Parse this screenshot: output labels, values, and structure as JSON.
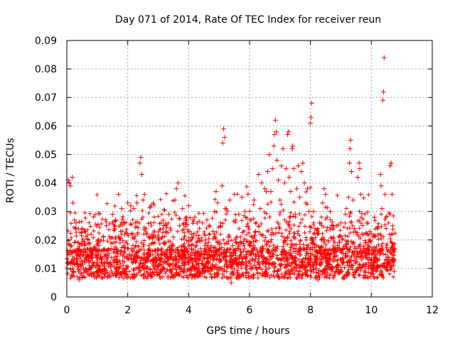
{
  "chart_data": {
    "type": "scatter",
    "title": "Day 071 of 2014, Rate Of TEC Index for receiver reun",
    "xlabel": "GPS time / hours",
    "ylabel": "ROTI / TECUs",
    "xlim": [
      0,
      12
    ],
    "ylim": [
      0,
      0.09
    ],
    "x_ticks": [
      0,
      2,
      4,
      6,
      8,
      10,
      12
    ],
    "x_tick_labels": [
      "0",
      "2",
      "4",
      "6",
      "8",
      "10",
      "12"
    ],
    "y_ticks": [
      0,
      0.01,
      0.02,
      0.03,
      0.04,
      0.05,
      0.06,
      0.07,
      0.08,
      0.09
    ],
    "y_tick_labels": [
      "0",
      "0.01",
      "0.02",
      "0.03",
      "0.04",
      "0.05",
      "0.06",
      "0.07",
      "0.08",
      "0.09"
    ],
    "grid": true,
    "marker": "+",
    "color": "#ff0000",
    "series": [
      {
        "name": "ROTI",
        "points": [
          [
            0.02,
            0.012
          ],
          [
            0.05,
            0.041
          ],
          [
            0.08,
            0.04
          ],
          [
            0.12,
            0.039
          ],
          [
            0.15,
            0.018
          ],
          [
            0.18,
            0.042
          ],
          [
            0.2,
            0.033
          ],
          [
            0.22,
            0.009
          ],
          [
            0.25,
            0.027
          ],
          [
            0.3,
            0.026
          ],
          [
            0.35,
            0.015
          ],
          [
            0.4,
            0.006
          ],
          [
            0.45,
            0.011
          ],
          [
            0.5,
            0.024
          ],
          [
            0.55,
            0.01
          ],
          [
            0.6,
            0.023
          ],
          [
            0.65,
            0.014
          ],
          [
            0.7,
            0.008
          ],
          [
            0.75,
            0.019
          ],
          [
            0.8,
            0.022
          ],
          [
            0.85,
            0.012
          ],
          [
            0.9,
            0.007
          ],
          [
            0.95,
            0.016
          ],
          [
            1.0,
            0.011
          ],
          [
            1.05,
            0.018
          ],
          [
            1.1,
            0.009
          ],
          [
            1.15,
            0.013
          ],
          [
            1.2,
            0.021
          ],
          [
            1.25,
            0.01
          ],
          [
            1.3,
            0.025
          ],
          [
            1.35,
            0.014
          ],
          [
            1.4,
            0.008
          ],
          [
            1.45,
            0.017
          ],
          [
            1.5,
            0.029
          ],
          [
            1.55,
            0.012
          ],
          [
            1.6,
            0.027
          ],
          [
            1.65,
            0.01
          ],
          [
            1.7,
            0.036
          ],
          [
            1.75,
            0.019
          ],
          [
            1.8,
            0.031
          ],
          [
            1.85,
            0.011
          ],
          [
            1.9,
            0.022
          ],
          [
            1.95,
            0.009
          ],
          [
            2.0,
            0.033
          ],
          [
            2.05,
            0.015
          ],
          [
            2.1,
            0.032
          ],
          [
            2.15,
            0.012
          ],
          [
            2.2,
            0.031
          ],
          [
            2.25,
            0.026
          ],
          [
            2.3,
            0.033
          ],
          [
            2.35,
            0.01
          ],
          [
            2.4,
            0.047
          ],
          [
            2.43,
            0.049
          ],
          [
            2.46,
            0.043
          ],
          [
            2.5,
            0.034
          ],
          [
            2.55,
            0.036
          ],
          [
            2.6,
            0.024
          ],
          [
            2.65,
            0.013
          ],
          [
            2.7,
            0.018
          ],
          [
            2.75,
            0.008
          ],
          [
            2.8,
            0.022
          ],
          [
            2.85,
            0.011
          ],
          [
            2.9,
            0.016
          ],
          [
            2.95,
            0.009
          ],
          [
            3.0,
            0.02
          ],
          [
            3.05,
            0.013
          ],
          [
            3.1,
            0.026
          ],
          [
            3.15,
            0.01
          ],
          [
            3.2,
            0.019
          ],
          [
            3.25,
            0.023
          ],
          [
            3.3,
            0.012
          ],
          [
            3.35,
            0.029
          ],
          [
            3.4,
            0.015
          ],
          [
            3.45,
            0.008
          ],
          [
            3.5,
            0.021
          ],
          [
            3.55,
            0.034
          ],
          [
            3.6,
            0.038
          ],
          [
            3.65,
            0.04
          ],
          [
            3.7,
            0.025
          ],
          [
            3.75,
            0.014
          ],
          [
            3.8,
            0.031
          ],
          [
            3.85,
            0.011
          ],
          [
            3.9,
            0.027
          ],
          [
            3.95,
            0.016
          ],
          [
            4.0,
            0.032
          ],
          [
            4.05,
            0.01
          ],
          [
            4.1,
            0.022
          ],
          [
            4.15,
            0.013
          ],
          [
            4.2,
            0.028
          ],
          [
            4.25,
            0.018
          ],
          [
            4.3,
            0.009
          ],
          [
            4.35,
            0.024
          ],
          [
            4.4,
            0.014
          ],
          [
            4.45,
            0.026
          ],
          [
            4.5,
            0.011
          ],
          [
            4.55,
            0.02
          ],
          [
            4.6,
            0.027
          ],
          [
            4.65,
            0.012
          ],
          [
            4.7,
            0.017
          ],
          [
            4.75,
            0.007
          ],
          [
            4.8,
            0.023
          ],
          [
            4.85,
            0.03
          ],
          [
            4.9,
            0.037
          ],
          [
            4.95,
            0.033
          ],
          [
            5.0,
            0.015
          ],
          [
            5.05,
            0.026
          ],
          [
            5.1,
            0.039
          ],
          [
            5.12,
            0.054
          ],
          [
            5.15,
            0.059
          ],
          [
            5.18,
            0.056
          ],
          [
            5.2,
            0.031
          ],
          [
            5.25,
            0.012
          ],
          [
            5.3,
            0.021
          ],
          [
            5.35,
            0.034
          ],
          [
            5.4,
            0.005
          ],
          [
            5.45,
            0.018
          ],
          [
            5.5,
            0.036
          ],
          [
            5.55,
            0.027
          ],
          [
            5.6,
            0.013
          ],
          [
            5.65,
            0.029
          ],
          [
            5.7,
            0.021
          ],
          [
            5.75,
            0.035
          ],
          [
            5.8,
            0.014
          ],
          [
            5.85,
            0.03
          ],
          [
            5.9,
            0.011
          ],
          [
            5.95,
            0.036
          ],
          [
            6.0,
            0.019
          ],
          [
            6.05,
            0.027
          ],
          [
            6.1,
            0.013
          ],
          [
            6.15,
            0.034
          ],
          [
            6.2,
            0.023
          ],
          [
            6.25,
            0.01
          ],
          [
            6.3,
            0.043
          ],
          [
            6.35,
            0.031
          ],
          [
            6.4,
            0.04
          ],
          [
            6.45,
            0.017
          ],
          [
            6.5,
            0.038
          ],
          [
            6.55,
            0.037
          ],
          [
            6.6,
            0.044
          ],
          [
            6.65,
            0.05
          ],
          [
            6.7,
            0.037
          ],
          [
            6.75,
            0.045
          ],
          [
            6.8,
            0.053
          ],
          [
            6.82,
            0.057
          ],
          [
            6.85,
            0.062
          ],
          [
            6.88,
            0.058
          ],
          [
            6.9,
            0.048
          ],
          [
            6.95,
            0.041
          ],
          [
            7.0,
            0.034
          ],
          [
            7.05,
            0.046
          ],
          [
            7.1,
            0.052
          ],
          [
            7.15,
            0.04
          ],
          [
            7.2,
            0.045
          ],
          [
            7.25,
            0.057
          ],
          [
            7.28,
            0.058
          ],
          [
            7.3,
            0.042
          ],
          [
            7.35,
            0.037
          ],
          [
            7.4,
            0.052
          ],
          [
            7.42,
            0.053
          ],
          [
            7.45,
            0.045
          ],
          [
            7.5,
            0.029
          ],
          [
            7.55,
            0.038
          ],
          [
            7.6,
            0.046
          ],
          [
            7.65,
            0.035
          ],
          [
            7.7,
            0.044
          ],
          [
            7.75,
            0.047
          ],
          [
            7.8,
            0.04
          ],
          [
            7.85,
            0.033
          ],
          [
            7.9,
            0.038
          ],
          [
            7.95,
            0.03
          ],
          [
            8.0,
            0.061
          ],
          [
            8.02,
            0.063
          ],
          [
            8.04,
            0.068
          ],
          [
            8.1,
            0.03
          ],
          [
            8.15,
            0.024
          ],
          [
            8.2,
            0.018
          ],
          [
            8.25,
            0.006
          ],
          [
            8.3,
            0.026
          ],
          [
            8.35,
            0.012
          ],
          [
            8.4,
            0.033
          ],
          [
            8.45,
            0.038
          ],
          [
            8.5,
            0.036
          ],
          [
            8.55,
            0.028
          ],
          [
            8.6,
            0.015
          ],
          [
            8.65,
            0.03
          ],
          [
            8.7,
            0.01
          ],
          [
            8.75,
            0.021
          ],
          [
            8.8,
            0.013
          ],
          [
            8.85,
            0.025
          ],
          [
            8.9,
            0.009
          ],
          [
            8.95,
            0.019
          ],
          [
            9.0,
            0.026
          ],
          [
            9.05,
            0.012
          ],
          [
            9.1,
            0.017
          ],
          [
            9.15,
            0.029
          ],
          [
            9.2,
            0.008
          ],
          [
            9.25,
            0.035
          ],
          [
            9.28,
            0.047
          ],
          [
            9.3,
            0.052
          ],
          [
            9.32,
            0.055
          ],
          [
            9.35,
            0.044
          ],
          [
            9.4,
            0.034
          ],
          [
            9.45,
            0.024
          ],
          [
            9.5,
            0.014
          ],
          [
            9.55,
            0.042
          ],
          [
            9.6,
            0.047
          ],
          [
            9.62,
            0.045
          ],
          [
            9.65,
            0.036
          ],
          [
            9.7,
            0.022
          ],
          [
            9.75,
            0.011
          ],
          [
            9.8,
            0.019
          ],
          [
            9.85,
            0.026
          ],
          [
            9.9,
            0.01
          ],
          [
            9.95,
            0.023
          ],
          [
            10.0,
            0.015
          ],
          [
            10.05,
            0.021
          ],
          [
            10.1,
            0.028
          ],
          [
            10.15,
            0.009
          ],
          [
            10.2,
            0.024
          ],
          [
            10.25,
            0.016
          ],
          [
            10.3,
            0.043
          ],
          [
            10.32,
            0.039
          ],
          [
            10.35,
            0.031
          ],
          [
            10.38,
            0.069
          ],
          [
            10.4,
            0.072
          ],
          [
            10.42,
            0.084
          ],
          [
            10.45,
            0.036
          ],
          [
            10.5,
            0.018
          ],
          [
            10.55,
            0.011
          ],
          [
            10.6,
            0.022
          ],
          [
            10.62,
            0.046
          ],
          [
            10.65,
            0.047
          ],
          [
            10.68,
            0.036
          ],
          [
            10.7,
            0.025
          ],
          [
            10.72,
            0.012
          ],
          [
            10.75,
            0.009
          ]
        ]
      }
    ]
  }
}
